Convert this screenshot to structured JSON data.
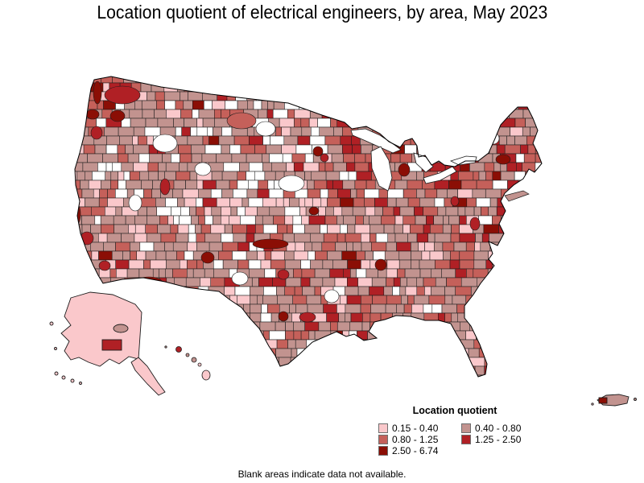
{
  "title": "Location quotient of electrical engineers, by area, May 2023",
  "caption": "Blank areas indicate data not available.",
  "legend": {
    "title": "Location quotient",
    "items": [
      {
        "label": "0.15 - 0.40",
        "color": "#fac8cb"
      },
      {
        "label": "0.40 - 0.80",
        "color": "#c2938f"
      },
      {
        "label": "0.80 - 1.25",
        "color": "#c5605a"
      },
      {
        "label": "1.25 - 2.50",
        "color": "#b02025"
      },
      {
        "label": "2.50 - 6.74",
        "color": "#8b0e05"
      }
    ],
    "no_data_color": "#ffffff",
    "border_color": "#1c1c1c"
  },
  "chart_data": {
    "type": "choropleth",
    "title": "Location quotient of electrical engineers, by area, May 2023",
    "legend_title": "Location quotient",
    "geography": "United States metropolitan and nonmetropolitan areas, including Alaska, Hawaii and Puerto Rico insets",
    "classes": [
      {
        "label": "0.15 - 0.40",
        "min": 0.15,
        "max": 0.4,
        "color": "#fac8cb"
      },
      {
        "label": "0.40 - 0.80",
        "min": 0.4,
        "max": 0.8,
        "color": "#c2938f"
      },
      {
        "label": "0.80 - 1.25",
        "min": 0.8,
        "max": 1.25,
        "color": "#c5605a"
      },
      {
        "label": "1.25 - 2.50",
        "min": 1.25,
        "max": 2.5,
        "color": "#b02025"
      },
      {
        "label": "2.50 - 6.74",
        "min": 2.5,
        "max": 6.74,
        "color": "#8b0e05"
      }
    ],
    "no_data_note": "Blank areas indicate data not available."
  }
}
